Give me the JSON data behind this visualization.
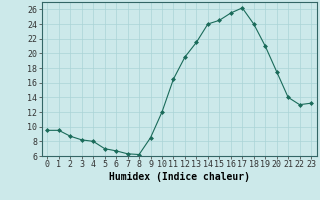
{
  "x": [
    0,
    1,
    2,
    3,
    4,
    5,
    6,
    7,
    8,
    9,
    10,
    11,
    12,
    13,
    14,
    15,
    16,
    17,
    18,
    19,
    20,
    21,
    22,
    23
  ],
  "y": [
    9.5,
    9.5,
    8.7,
    8.2,
    8.0,
    7.0,
    6.7,
    6.3,
    6.2,
    8.5,
    12.0,
    16.5,
    19.5,
    21.5,
    24.0,
    24.5,
    25.5,
    26.2,
    24.0,
    21.0,
    17.5,
    14.0,
    13.0,
    13.2
  ],
  "line_color": "#1a6b5a",
  "marker": "D",
  "marker_size": 2,
  "background_color": "#cce9ea",
  "grid_color": "#aad4d6",
  "xlabel": "Humidex (Indice chaleur)",
  "ylabel": "",
  "title": "",
  "xlim": [
    -0.5,
    23.5
  ],
  "ylim": [
    6,
    27
  ],
  "yticks": [
    6,
    8,
    10,
    12,
    14,
    16,
    18,
    20,
    22,
    24,
    26
  ],
  "xticks": [
    0,
    1,
    2,
    3,
    4,
    5,
    6,
    7,
    8,
    9,
    10,
    11,
    12,
    13,
    14,
    15,
    16,
    17,
    18,
    19,
    20,
    21,
    22,
    23
  ],
  "xlabel_fontsize": 7,
  "tick_fontsize": 6
}
